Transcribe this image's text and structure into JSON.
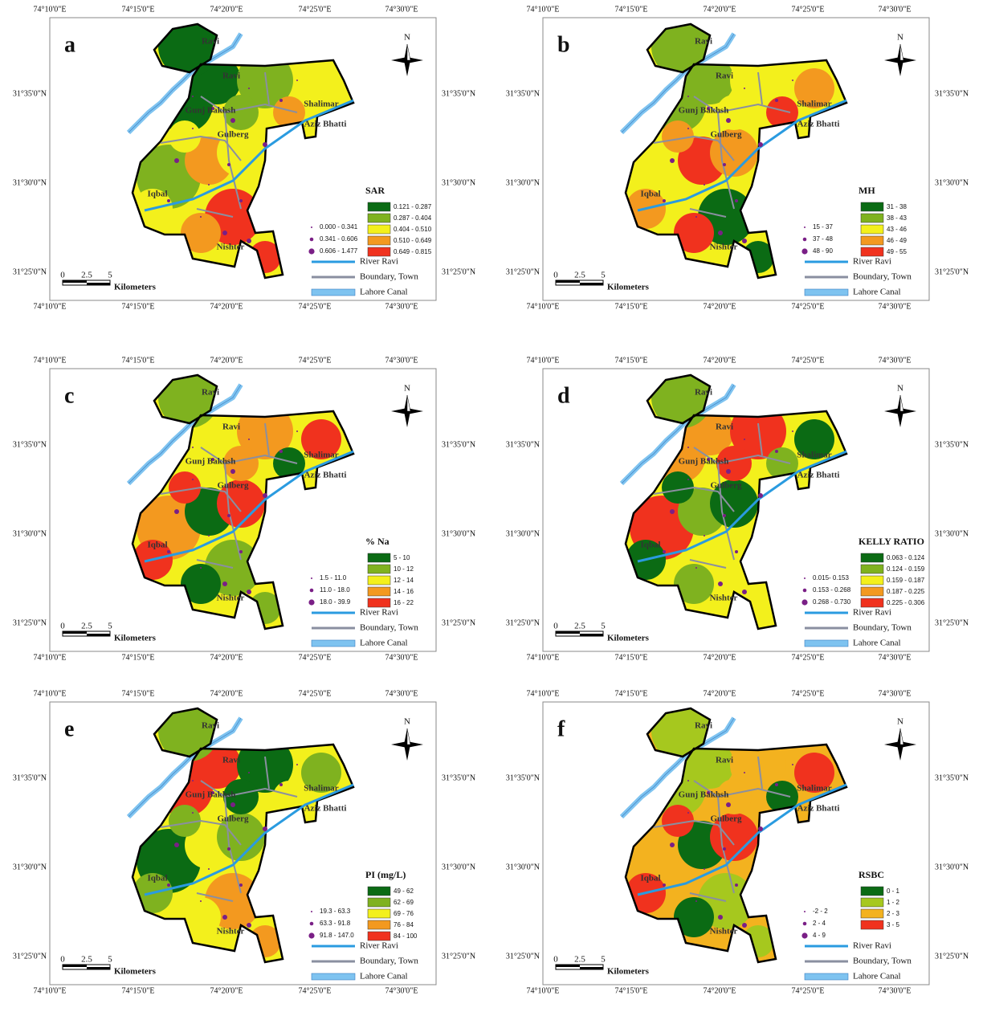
{
  "common": {
    "lons": [
      "74°10'0\"E",
      "74°15'0\"E",
      "74°20'0\"E",
      "74°25'0\"E",
      "74°30'0\"E"
    ],
    "lats": [
      "31°35'0\"N",
      "31°30'0\"N",
      "31°25'0\"N"
    ],
    "towns": [
      "Ravi",
      "Ravi",
      "Gunj Bakhsh",
      "Shalimar",
      "Aziz Bhatti",
      "Gulberg",
      "Iqbal",
      "Nishter"
    ],
    "north": "N",
    "scale": [
      "0",
      "2.5",
      "5",
      "Kilometers"
    ],
    "lines": [
      "River Ravi",
      "Boundary, Town",
      "Lahore Canal"
    ]
  },
  "panels": [
    {
      "letter": "a",
      "legend_title": "SAR",
      "points": [
        "0.000 - 0.341",
        "0.341 - 0.606",
        "0.606 - 1.477"
      ],
      "classes": [
        {
          "label": "0.121 - 0.287",
          "color": "#0b6b14"
        },
        {
          "label": "0.287 - 0.404",
          "color": "#7fb21f"
        },
        {
          "label": "0.404 - 0.510",
          "color": "#f3f01c"
        },
        {
          "label": "0.510 - 0.649",
          "color": "#f3991f"
        },
        {
          "label": "0.649 - 0.815",
          "color": "#f0321e"
        }
      ]
    },
    {
      "letter": "b",
      "legend_title": "MH",
      "points": [
        "15 - 37",
        "37 - 48",
        "48 - 90"
      ],
      "classes": [
        {
          "label": "31 - 38",
          "color": "#0b6b14"
        },
        {
          "label": "38 - 43",
          "color": "#7fb21f"
        },
        {
          "label": "43 - 46",
          "color": "#f3f01c"
        },
        {
          "label": "46 - 49",
          "color": "#f3991f"
        },
        {
          "label": "49 - 55",
          "color": "#f0321e"
        }
      ]
    },
    {
      "letter": "c",
      "legend_title": "% Na",
      "points": [
        "1.5 - 11.0",
        "11.0 - 18.0",
        "18.0 - 39.9"
      ],
      "classes": [
        {
          "label": "5 - 10",
          "color": "#0b6b14"
        },
        {
          "label": "10 - 12",
          "color": "#7fb21f"
        },
        {
          "label": "12 - 14",
          "color": "#f3f01c"
        },
        {
          "label": "14 - 16",
          "color": "#f3991f"
        },
        {
          "label": "16 - 22",
          "color": "#f0321e"
        }
      ]
    },
    {
      "letter": "d",
      "legend_title": "KELLY RATIO",
      "points": [
        "0.015- 0.153",
        "0.153 - 0.268",
        "0.268 - 0.730"
      ],
      "classes": [
        {
          "label": "0.063 - 0.124",
          "color": "#0b6b14"
        },
        {
          "label": "0.124 - 0.159",
          "color": "#7fb21f"
        },
        {
          "label": "0.159 - 0.187",
          "color": "#f3f01c"
        },
        {
          "label": "0.187 - 0.225",
          "color": "#f3991f"
        },
        {
          "label": "0.225 - 0.306",
          "color": "#f0321e"
        }
      ]
    },
    {
      "letter": "e",
      "legend_title": "PI  (mg/L)",
      "points": [
        "19.3 - 63.3",
        "63.3 - 91.8",
        "91.8 - 147.0"
      ],
      "classes": [
        {
          "label": "49 - 62",
          "color": "#0b6b14"
        },
        {
          "label": "62 - 69",
          "color": "#7fb21f"
        },
        {
          "label": "69 - 76",
          "color": "#f3f01c"
        },
        {
          "label": "76 - 84",
          "color": "#f3991f"
        },
        {
          "label": "84 - 100",
          "color": "#f0321e"
        }
      ]
    },
    {
      "letter": "f",
      "legend_title": "RSBC",
      "points": [
        "-2 - 2",
        "2 - 4",
        "4 - 9"
      ],
      "classes": [
        {
          "label": "0 - 1",
          "color": "#0b6b14"
        },
        {
          "label": "1 - 2",
          "color": "#a6c81e"
        },
        {
          "label": "2 - 3",
          "color": "#f3b21f"
        },
        {
          "label": "3 - 5",
          "color": "#f0321e"
        }
      ]
    }
  ]
}
